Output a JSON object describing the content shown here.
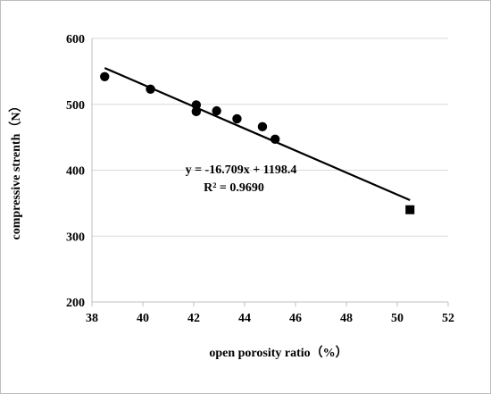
{
  "chart_data": {
    "type": "scatter",
    "xlabel": "open porosity ratio（%）",
    "ylabel": "compressive strenth（N）",
    "xlim": [
      38,
      52
    ],
    "ylim": [
      200,
      600
    ],
    "xticks": [
      38,
      40,
      42,
      44,
      46,
      48,
      50,
      52
    ],
    "yticks": [
      200,
      300,
      400,
      500,
      600
    ],
    "x_tick_labels": [
      "38",
      "40",
      "42",
      "44",
      "46",
      "48",
      "50",
      "52"
    ],
    "y_tick_labels": [
      "200",
      "300",
      "400",
      "500",
      "600"
    ],
    "grid": "horizontal",
    "series": [
      {
        "marker": "circle",
        "color": "#000000",
        "points": [
          {
            "x": 38.5,
            "y": 542
          },
          {
            "x": 40.3,
            "y": 523
          },
          {
            "x": 42.1,
            "y": 499
          },
          {
            "x": 42.1,
            "y": 489
          },
          {
            "x": 42.9,
            "y": 490
          },
          {
            "x": 43.7,
            "y": 478
          },
          {
            "x": 44.7,
            "y": 466
          },
          {
            "x": 45.2,
            "y": 447
          }
        ]
      },
      {
        "marker": "square",
        "color": "#000000",
        "points": [
          {
            "x": 50.5,
            "y": 340
          }
        ]
      }
    ],
    "trendline": {
      "slope": -16.709,
      "intercept": 1198.4,
      "x_range": [
        38.5,
        50.5
      ],
      "color": "#000000"
    },
    "annotations": {
      "equation": "y = -16.709x + 1198.4",
      "r_squared": "R² = 0.9690"
    }
  }
}
